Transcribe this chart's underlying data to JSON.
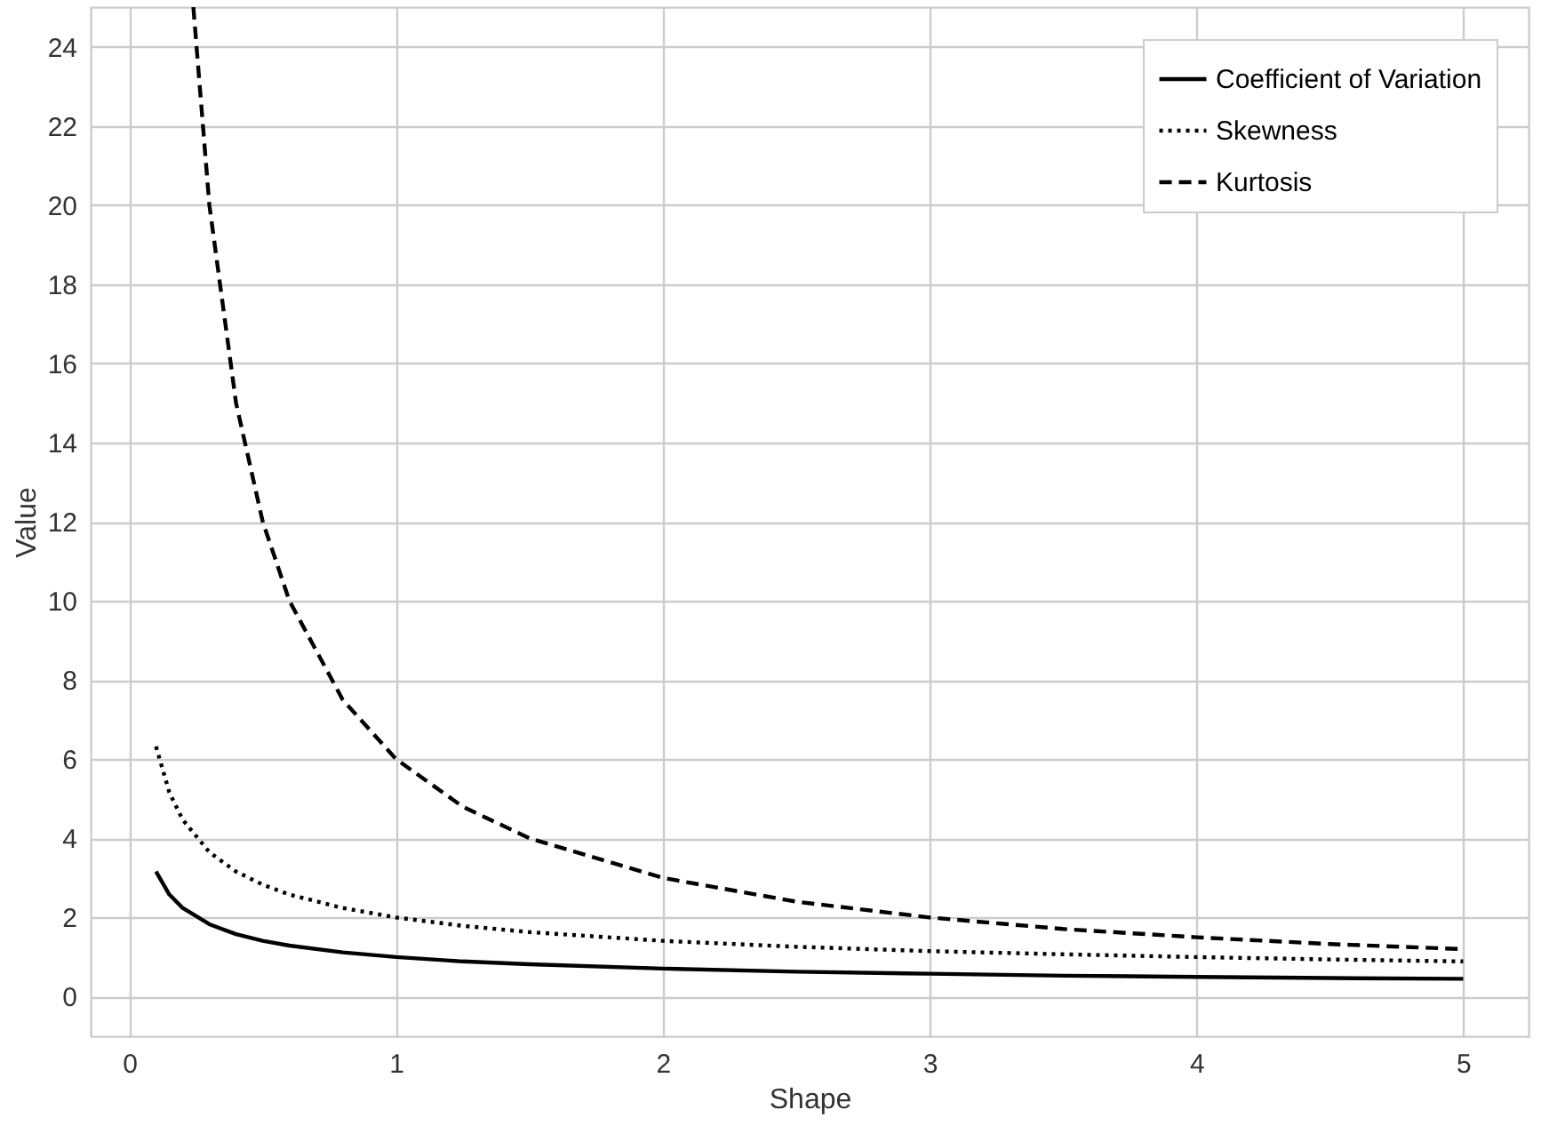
{
  "chart_data": {
    "type": "line",
    "xlabel": "Shape",
    "ylabel": "Value",
    "xlim": [
      -0.145,
      5.245
    ],
    "xticks": [
      0,
      1,
      2,
      3,
      4,
      5
    ],
    "ylim": [
      -1,
      25
    ],
    "yticks": [
      0,
      2,
      4,
      6,
      8,
      10,
      12,
      14,
      16,
      18,
      20,
      22,
      24
    ],
    "grid": true,
    "legend": "top right",
    "marker": "none",
    "series": [
      {
        "name": "Coefficient of Variation",
        "color": "#000000",
        "line_style": "solid",
        "x": [
          0.1,
          0.15,
          0.2,
          0.3,
          0.4,
          0.5,
          0.6,
          0.8,
          1,
          1.25,
          1.5,
          2,
          2.5,
          3,
          3.5,
          4,
          4.5,
          5
        ],
        "values": [
          3.16,
          2.58,
          2.24,
          1.83,
          1.58,
          1.41,
          1.29,
          1.12,
          1.0,
          0.89,
          0.82,
          0.71,
          0.63,
          0.58,
          0.53,
          0.5,
          0.47,
          0.45
        ]
      },
      {
        "name": "Skewness",
        "color": "#000000",
        "line_style": "dotted",
        "x": [
          0.1,
          0.15,
          0.2,
          0.3,
          0.4,
          0.5,
          0.6,
          0.8,
          1,
          1.25,
          1.5,
          2,
          2.5,
          3,
          3.5,
          4,
          4.5,
          5
        ],
        "values": [
          6.32,
          5.16,
          4.47,
          3.65,
          3.16,
          2.83,
          2.58,
          2.24,
          2.0,
          1.79,
          1.63,
          1.41,
          1.26,
          1.15,
          1.07,
          1.0,
          0.94,
          0.89
        ]
      },
      {
        "name": "Kurtosis",
        "color": "#000000",
        "line_style": "dashed",
        "x": [
          0.24,
          0.3,
          0.4,
          0.5,
          0.6,
          0.8,
          1,
          1.25,
          1.5,
          2,
          2.5,
          3,
          3.5,
          4,
          4.5,
          5
        ],
        "values": [
          25,
          20,
          15,
          12,
          10,
          7.5,
          6,
          4.8,
          4,
          3,
          2.4,
          2,
          1.71,
          1.5,
          1.33,
          1.2
        ]
      }
    ]
  }
}
